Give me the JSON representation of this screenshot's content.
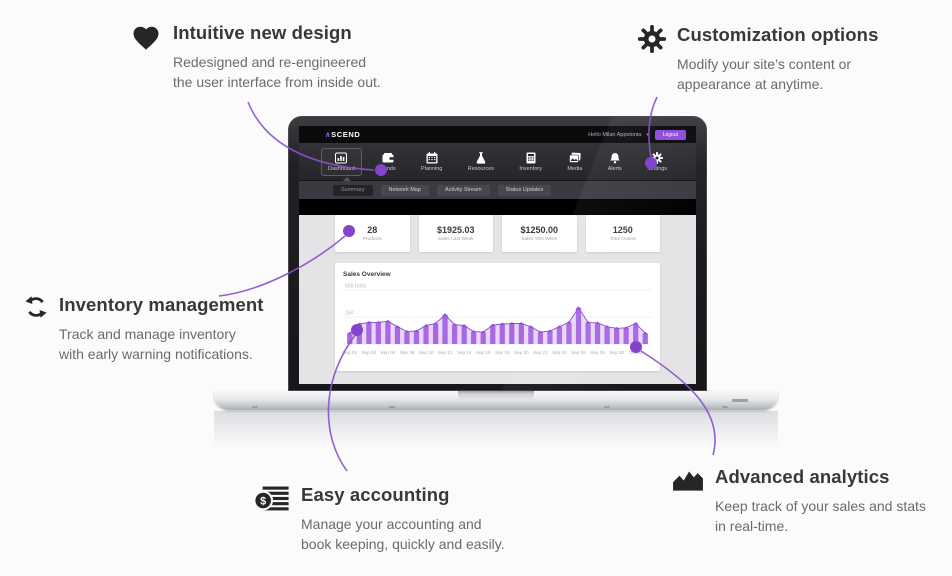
{
  "features": [
    {
      "icon": "heart-icon",
      "title": "Intuitive new design",
      "desc1": "Redesigned and re-engineered",
      "desc2": "the user interface from inside out."
    },
    {
      "icon": "gear-icon",
      "title": "Customization options",
      "desc1": "Modify your site’s content or",
      "desc2": "appearance at anytime."
    },
    {
      "icon": "sync-icon",
      "title": "Inventory management",
      "desc1": "Track and manage inventory",
      "desc2": "with early warning notifications."
    },
    {
      "icon": "coin-ledger-icon",
      "title": "Easy accounting",
      "desc1": "Manage your accounting and",
      "desc2": "book keeping, quickly and easily."
    },
    {
      "icon": "area-chart-icon",
      "title": "Advanced analytics",
      "desc1": "Keep track of your sales and stats",
      "desc2": "in real-time."
    }
  ],
  "dashboard": {
    "logo": {
      "mark": "∧",
      "text": "SCEND"
    },
    "header": {
      "greeting": "Hello Milan Appolonia",
      "dropdown_caret": "▾",
      "logout_label": "Logout"
    },
    "nav_items": [
      {
        "label": "Dashboard",
        "icon": "bar-chart-icon",
        "active": true
      },
      {
        "label": "Funds",
        "icon": "wallet-icon",
        "active": false
      },
      {
        "label": "Planning",
        "icon": "calendar-icon",
        "active": false
      },
      {
        "label": "Resources",
        "icon": "flask-icon",
        "active": false
      },
      {
        "label": "Inventory",
        "icon": "calculator-icon",
        "active": false
      },
      {
        "label": "Media",
        "icon": "photos-icon",
        "active": false
      },
      {
        "label": "Alerts",
        "icon": "bell-icon",
        "active": false
      },
      {
        "label": "Settings",
        "icon": "gear-icon",
        "active": false
      }
    ],
    "tabs": [
      {
        "label": "Summary",
        "active": true
      },
      {
        "label": "Network Map",
        "active": false
      },
      {
        "label": "Activity Stream",
        "active": false
      },
      {
        "label": "Status Updates",
        "active": false
      }
    ],
    "stats": [
      {
        "value": "28",
        "label": "Products"
      },
      {
        "value": "$1925.03",
        "label": "Sales Last Week"
      },
      {
        "value": "$1250.00",
        "label": "Sales This Week"
      },
      {
        "value": "1250",
        "label": "Total Orders"
      }
    ]
  },
  "chart_data": {
    "type": "bar",
    "title": "Sales Overview",
    "categories": [
      "Sep 02",
      "Sep 04",
      "Sep 06",
      "Sep 08",
      "Sep 10",
      "Sep 12",
      "Sep 14",
      "Sep 16",
      "Sep 18",
      "Sep 20",
      "Sep 22",
      "Sep 24",
      "Sep 26",
      "Sep 28",
      "Sep 30",
      "Oct 02"
    ],
    "values": [
      100,
      185,
      200,
      200,
      210,
      160,
      115,
      120,
      170,
      190,
      270,
      180,
      170,
      115,
      110,
      175,
      185,
      190,
      190,
      160,
      110,
      120,
      160,
      200,
      335,
      200,
      195,
      160,
      145,
      150,
      190,
      100
    ],
    "ylim": [
      0,
      500
    ],
    "gridlines": [
      500,
      250
    ],
    "y_axis_labels": [
      "500 Units",
      "250"
    ],
    "xlabel": "",
    "ylabel": "Units",
    "legend": "none",
    "bar_color": "#a868e2",
    "line_color": "#8d4ad0",
    "area_color": "#cda7f0"
  },
  "colors": {
    "accent_purple": "#8a52cc",
    "connector_dot": "#8443cc",
    "logout_purple": "#8d4bd9",
    "logo_purple": "#9b5fe8"
  }
}
